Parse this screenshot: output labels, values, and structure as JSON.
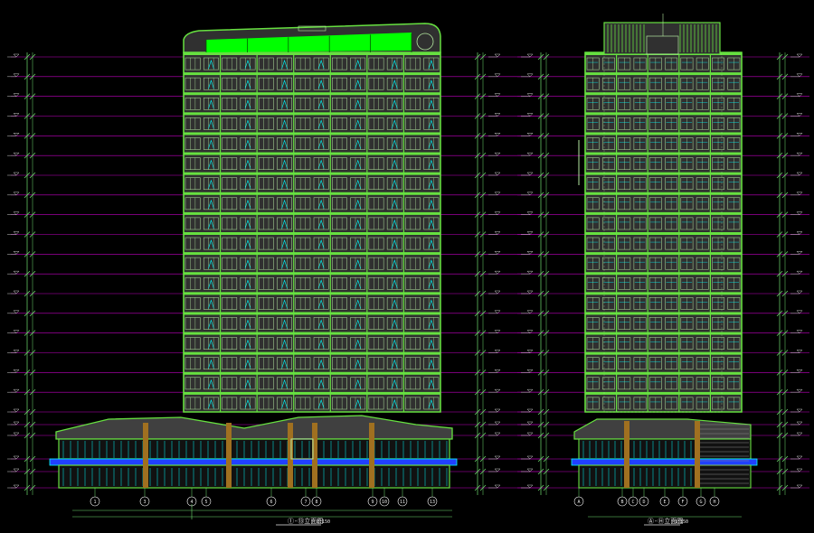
{
  "drawing": {
    "type": "cad-elevation",
    "background": "#000000",
    "colors": {
      "outline": "#66e040",
      "frame": "#b4e8a0",
      "glass": "#00ffff",
      "roof_fill": "#00ff00",
      "level_line": "#c000c0",
      "dimension": "#70e070",
      "column": "#a07020",
      "podium_band": "#2040ff",
      "tower_fill": "#303030"
    },
    "floor_count": 18,
    "bay_count": 14
  },
  "front_elevation": {
    "view_title": "①-⑬立面图",
    "scale": "1:150",
    "axis_labels": [
      "1",
      "3",
      "4",
      "5",
      "6",
      "7",
      "8",
      "9",
      "10",
      "11",
      "13"
    ]
  },
  "side_elevation": {
    "view_title": "Ⓐ-Ⓗ立面图",
    "scale": "1:150",
    "axis_labels": [
      "A",
      "B",
      "C",
      "D",
      "E",
      "F",
      "G",
      "H"
    ]
  }
}
